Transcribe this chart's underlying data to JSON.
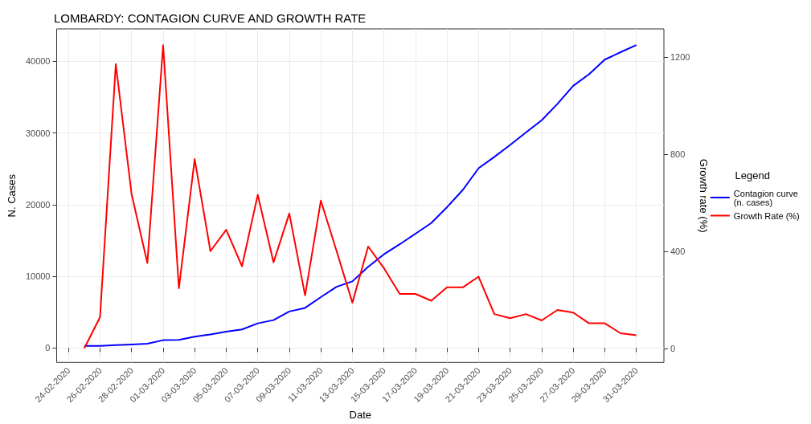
{
  "chart_data": {
    "type": "line",
    "title": "LOMBARDY: CONTAGION CURVE AND GROWTH RATE",
    "xlabel": "Date",
    "ylabel": "N. Cases",
    "y2label": "Growth rate (%)",
    "legend_title": "Legend",
    "legend": "right",
    "grid": true,
    "marker": "none",
    "line_style": "solid",
    "x": [
      "2020-02-25",
      "2020-02-26",
      "2020-02-27",
      "2020-02-28",
      "2020-02-29",
      "2020-03-01",
      "2020-03-02",
      "2020-03-03",
      "2020-03-04",
      "2020-03-05",
      "2020-03-06",
      "2020-03-07",
      "2020-03-08",
      "2020-03-09",
      "2020-03-10",
      "2020-03-11",
      "2020-03-12",
      "2020-03-13",
      "2020-03-14",
      "2020-03-15",
      "2020-03-16",
      "2020-03-17",
      "2020-03-18",
      "2020-03-19",
      "2020-03-20",
      "2020-03-21",
      "2020-03-22",
      "2020-03-23",
      "2020-03-24",
      "2020-03-25",
      "2020-03-26",
      "2020-03-27",
      "2020-03-28",
      "2020-03-29",
      "2020-03-30",
      "2020-03-31"
    ],
    "series": [
      {
        "name": "Contagion curve (n. cases)",
        "color": "#0000ff",
        "values": [
          300,
          300,
          400,
          500,
          600,
          1100,
          1150,
          1600,
          1900,
          2300,
          2600,
          3450,
          3900,
          5100,
          5600,
          7100,
          8550,
          9300,
          11330,
          13070,
          14470,
          15950,
          17430,
          19650,
          22050,
          25070,
          26660,
          28320,
          30060,
          31760,
          34050,
          36560,
          38180,
          40220,
          41250,
          42250
        ]
      },
      {
        "name": "Growth Rate (%)",
        "color": "#ff0000",
        "axis": "y2",
        "values": [
          0,
          128,
          1170,
          635,
          351,
          1248,
          247,
          779,
          400,
          488,
          338,
          632,
          354,
          555,
          218,
          608,
          400,
          188,
          419,
          330,
          224,
          224,
          196,
          251,
          251,
          295,
          141,
          124,
          141,
          115,
          158,
          147,
          103,
          103,
          62,
          54
        ]
      }
    ],
    "xlim": [
      "2020-02-23T06:00",
      "2020-04-01T18:00"
    ],
    "xticks": [
      {
        "value": "2020-02-24",
        "label": "24-02-2020"
      },
      {
        "value": "2020-02-26",
        "label": "26-02-2020"
      },
      {
        "value": "2020-02-28",
        "label": "28-02-2020"
      },
      {
        "value": "2020-03-01",
        "label": "01-03-2020"
      },
      {
        "value": "2020-03-03",
        "label": "03-03-2020"
      },
      {
        "value": "2020-03-05",
        "label": "05-03-2020"
      },
      {
        "value": "2020-03-07",
        "label": "07-03-2020"
      },
      {
        "value": "2020-03-09",
        "label": "09-03-2020"
      },
      {
        "value": "2020-03-11",
        "label": "11-03-2020"
      },
      {
        "value": "2020-03-13",
        "label": "13-03-2020"
      },
      {
        "value": "2020-03-15",
        "label": "15-03-2020"
      },
      {
        "value": "2020-03-17",
        "label": "17-03-2020"
      },
      {
        "value": "2020-03-19",
        "label": "19-03-2020"
      },
      {
        "value": "2020-03-21",
        "label": "21-03-2020"
      },
      {
        "value": "2020-03-23",
        "label": "23-03-2020"
      },
      {
        "value": "2020-03-25",
        "label": "25-03-2020"
      },
      {
        "value": "2020-03-27",
        "label": "27-03-2020"
      },
      {
        "value": "2020-03-29",
        "label": "29-03-2020"
      },
      {
        "value": "2020-03-31",
        "label": "31-03-2020"
      }
    ],
    "ylim": [
      -2000,
      44500
    ],
    "yticks": [
      0,
      10000,
      20000,
      30000,
      40000
    ],
    "y2lim": [
      -58,
      1315
    ],
    "y2ticks": [
      0,
      400,
      800,
      1200
    ]
  }
}
